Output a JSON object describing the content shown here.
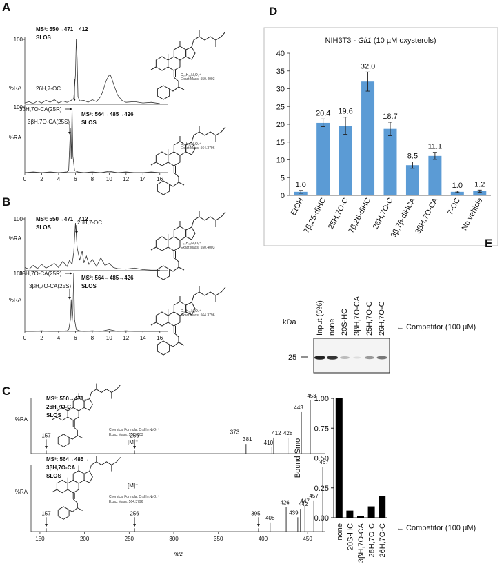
{
  "chart_data": [
    {
      "type": "line",
      "panel": "A",
      "title_lines": [
        "MS³: 550→471→412",
        "SLOS"
      ],
      "ylabel": "%RA",
      "x": [
        0,
        0.5,
        1,
        1.5,
        2,
        2.5,
        3,
        3.5,
        4,
        4.5,
        5,
        5.5,
        5.8,
        6,
        6.1,
        6.2,
        6.3,
        6.5,
        7,
        7.5,
        8,
        8.5,
        9,
        9.3,
        9.6,
        9.9,
        10.1,
        10.3,
        10.6,
        11,
        11.5,
        12,
        13,
        14,
        15,
        16
      ],
      "values": [
        2,
        4,
        1,
        5,
        2,
        6,
        3,
        7,
        2,
        5,
        3,
        6,
        9,
        45,
        100,
        70,
        12,
        5,
        6,
        3,
        7,
        4,
        12,
        22,
        35,
        43,
        46,
        40,
        28,
        14,
        6,
        3,
        4,
        2,
        3,
        1
      ],
      "xlim": [
        0,
        17
      ],
      "ylim": [
        0,
        100
      ],
      "yticks": [
        100
      ],
      "color": "#333333",
      "annotations": [
        "26H,7-OC"
      ],
      "structure": {
        "formula": "C₃₄H₅₂N₃O₃⁺",
        "exact_mass": "Exact Mass: 550.4003"
      }
    },
    {
      "type": "line",
      "title_lines": [
        "MS³: 564→485→426",
        "SLOS"
      ],
      "ylabel": "%RA",
      "x": [
        0,
        1,
        2,
        3,
        4,
        5,
        5.2,
        5.4,
        5.5,
        5.6,
        5.7,
        5.9,
        6.3,
        7,
        8,
        9,
        10,
        11,
        12,
        13,
        14,
        15,
        16
      ],
      "values": [
        0,
        1,
        0,
        1,
        0,
        1,
        4,
        68,
        20,
        100,
        25,
        3,
        1,
        0,
        1,
        0,
        2,
        0,
        1,
        0,
        0,
        1,
        0
      ],
      "xlim": [
        0,
        17
      ],
      "ylim": [
        0,
        100
      ],
      "yticks": [
        100
      ],
      "xticks": [
        0,
        2,
        4,
        6,
        8,
        10,
        12,
        14,
        16
      ],
      "color": "#333333",
      "annotations": [
        "3βH,7O-CA(25R)",
        "3βH,7O-CA(25S)"
      ],
      "structure": {
        "formula": "C₃₄H₅₀N₃O₄⁺",
        "exact_mass": "Exact Mass: 564.3796"
      }
    },
    {
      "type": "line",
      "panel": "B",
      "title_lines": [
        "MS³: 550→471→412",
        "SLOS"
      ],
      "ylabel": "%RA",
      "x": [
        0,
        0.5,
        1,
        1.5,
        2,
        2.5,
        3,
        3.5,
        4,
        4.5,
        5,
        5.3,
        5.6,
        5.8,
        6,
        6.2,
        6.5,
        6.8,
        7,
        7.3,
        7.6,
        8,
        8.5,
        9,
        9.5,
        10,
        10.5,
        11,
        12,
        13,
        14,
        15,
        16
      ],
      "values": [
        6,
        3,
        10,
        4,
        12,
        5,
        9,
        14,
        6,
        18,
        8,
        20,
        12,
        35,
        92,
        45,
        20,
        38,
        15,
        28,
        12,
        22,
        8,
        25,
        10,
        14,
        6,
        4,
        3,
        5,
        2,
        1,
        1
      ],
      "xlim": [
        0,
        17
      ],
      "ylim": [
        0,
        100
      ],
      "yticks": [
        100
      ],
      "color": "#333333",
      "annotations": [
        "26H,7-OC"
      ],
      "structure": {
        "formula": "C₃₄H₅₂N₃O₃⁺",
        "exact_mass": "Exact Mass: 550.4003"
      }
    },
    {
      "type": "line",
      "title_lines": [
        "MS³: 564→485→426",
        "SLOS"
      ],
      "ylabel": "%RA",
      "x": [
        0,
        1,
        2,
        3,
        4,
        5,
        5.2,
        5.4,
        5.5,
        5.6,
        5.7,
        5.8,
        5.9,
        6.1,
        6.5,
        7,
        8,
        9,
        10,
        11,
        12,
        13,
        14,
        15,
        16
      ],
      "values": [
        0,
        0,
        1,
        0,
        0,
        1,
        3,
        20,
        55,
        15,
        35,
        100,
        20,
        3,
        1,
        0,
        1,
        0,
        3,
        0,
        1,
        0,
        0,
        0,
        0
      ],
      "xlim": [
        0,
        17
      ],
      "ylim": [
        0,
        100
      ],
      "yticks": [
        100
      ],
      "xticks": [
        0,
        2,
        4,
        6,
        8,
        10,
        12,
        14,
        16
      ],
      "color": "#333333",
      "annotations": [
        "3βH,7O-CA(25R)",
        "3βH,7O-CA(25S)"
      ],
      "structure": {
        "formula": "C₃₄H₅₀N₃O₄⁺",
        "exact_mass": "Exact Mass: 564.3796"
      }
    },
    {
      "type": "stem",
      "panel": "C",
      "title_lines": [
        "MS³: 550→471→",
        "26H,7O-C",
        "SLOS"
      ],
      "ylabel": "%RA",
      "x": [
        157,
        256,
        373,
        381,
        410,
        412,
        428,
        443,
        453
      ],
      "values": [
        6,
        6,
        32,
        18,
        12,
        30,
        30,
        78,
        100
      ],
      "xlim": [
        140,
        470
      ],
      "ylim": [
        0,
        100
      ],
      "color": "#333333",
      "structure": {
        "formula": "Chemical Formula: C₃₄H₅₂N₃O₃⁺",
        "exact_mass": "Exact Mass: 550.4003",
        "ion": "[M]⁺"
      }
    },
    {
      "type": "stem",
      "title_lines": [
        "MS³: 564→485→",
        "3βH,7O-CA",
        "SLOS"
      ],
      "ylabel": "%RA",
      "xlabel": "m/z",
      "x": [
        157,
        256,
        395,
        408,
        426,
        439,
        442,
        447,
        457,
        467
      ],
      "values": [
        5,
        5,
        5,
        14,
        38,
        22,
        35,
        40,
        48,
        100
      ],
      "xlim": [
        140,
        470
      ],
      "ylim": [
        0,
        100
      ],
      "xticks": [
        150,
        200,
        250,
        300,
        350,
        400,
        450
      ],
      "color": "#333333",
      "structure": {
        "formula": "Chemical Formula: C₃₄H₅₀N₃O₄⁺",
        "exact_mass": "Exact Mass: 564.3796",
        "ion": "[M]⁺"
      }
    },
    {
      "type": "bar",
      "panel": "D",
      "title": [
        "NIH3T3 - ",
        "Gli1",
        " (10 µM oxysterols)"
      ],
      "categories": [
        "EtOH",
        "7β,25-diHC",
        "25H,7O-C",
        "7β,26-diHC",
        "26H,7O-C",
        "3β,7β-diHCA",
        "3βH,7O-CA",
        "7-OC",
        "No vehicle"
      ],
      "values": [
        1,
        20.4,
        19.6,
        32,
        18.7,
        8.5,
        11.1,
        1,
        1.2
      ],
      "value_labels": [
        "1.0",
        "20.4",
        "19.6",
        "32.0",
        "18.7",
        "8.5",
        "11.1",
        "1.0",
        "1.2"
      ],
      "errors": [
        0.4,
        1.1,
        2.4,
        2.7,
        1.9,
        0.9,
        1.0,
        0.2,
        0.3
      ],
      "ylim": [
        0,
        40
      ],
      "yticks": [
        0,
        5,
        10,
        15,
        20,
        25,
        30,
        35,
        40
      ],
      "color": "#5b9bd5"
    },
    {
      "type": "bar",
      "panel": "E",
      "ylabel": "Bound Smo",
      "blot": {
        "lanes": [
          "Input (5%)",
          "none",
          "20S-HC",
          "3βH,7O-CA",
          "25H,7O-C",
          "26H,7O-C"
        ],
        "unit": "kDa",
        "marker": 25,
        "note": "← Competitor (100 μM)"
      },
      "categories": [
        "none",
        "20S-HC",
        "3βH,7O-CA",
        "25H,7O-C",
        "26H,7O-C"
      ],
      "values": [
        1.0,
        0.06,
        0.015,
        0.095,
        0.18
      ],
      "ylim": [
        0,
        1
      ],
      "yticks": [
        {
          "value": 0,
          "label": "0.00"
        },
        {
          "value": 0.25,
          "label": "0.25"
        },
        {
          "value": 0.5,
          "label": "0.50"
        },
        {
          "value": 0.75,
          "label": "0.75"
        },
        {
          "value": 1,
          "label": "1.00"
        }
      ],
      "annotation": "← Competitor (100 μM)",
      "color": "#000000"
    }
  ]
}
